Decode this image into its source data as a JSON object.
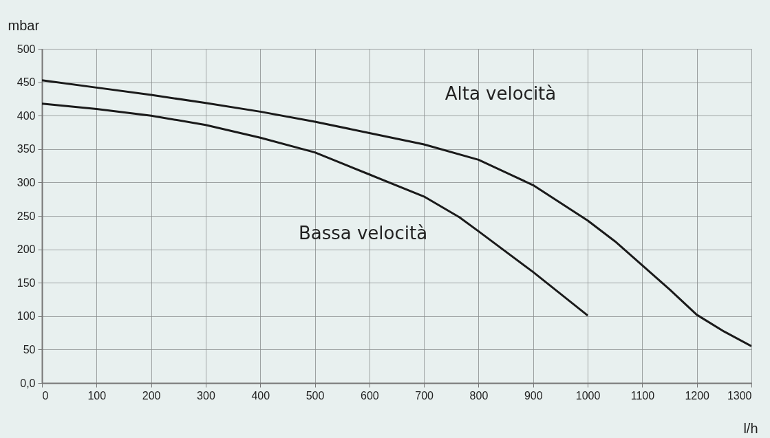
{
  "chart_data": {
    "type": "line",
    "xlabel": "l/h",
    "ylabel": "mbar",
    "xlim": [
      0,
      1300
    ],
    "xticks": [
      0,
      100,
      200,
      300,
      400,
      500,
      600,
      700,
      800,
      900,
      1000,
      1100,
      1200,
      1300
    ],
    "ylim": [
      0,
      500
    ],
    "yticks": [
      {
        "value": 0,
        "label": "0,0"
      },
      50,
      100,
      150,
      200,
      250,
      300,
      350,
      400,
      450,
      500
    ],
    "grid": true,
    "legend": false,
    "marker": "none",
    "line_style": "solid",
    "series": [
      {
        "name": "Alta velocità",
        "color": "#1a1a1a",
        "x": [
          0,
          100,
          200,
          300,
          400,
          500,
          600,
          700,
          800,
          900,
          1000,
          1050,
          1100,
          1150,
          1200,
          1250,
          1300
        ],
        "values": [
          453,
          442,
          431,
          419,
          406,
          391,
          374,
          357,
          334,
          296,
          243,
          212,
          176,
          140,
          102,
          77,
          55
        ]
      },
      {
        "name": "Bassa velocità",
        "color": "#1a1a1a",
        "x": [
          0,
          100,
          200,
          300,
          400,
          500,
          600,
          700,
          765,
          800,
          900,
          1000
        ],
        "values": [
          418,
          410,
          400,
          386,
          367,
          345,
          312,
          279,
          248,
          227,
          166,
          101
        ]
      }
    ]
  }
}
